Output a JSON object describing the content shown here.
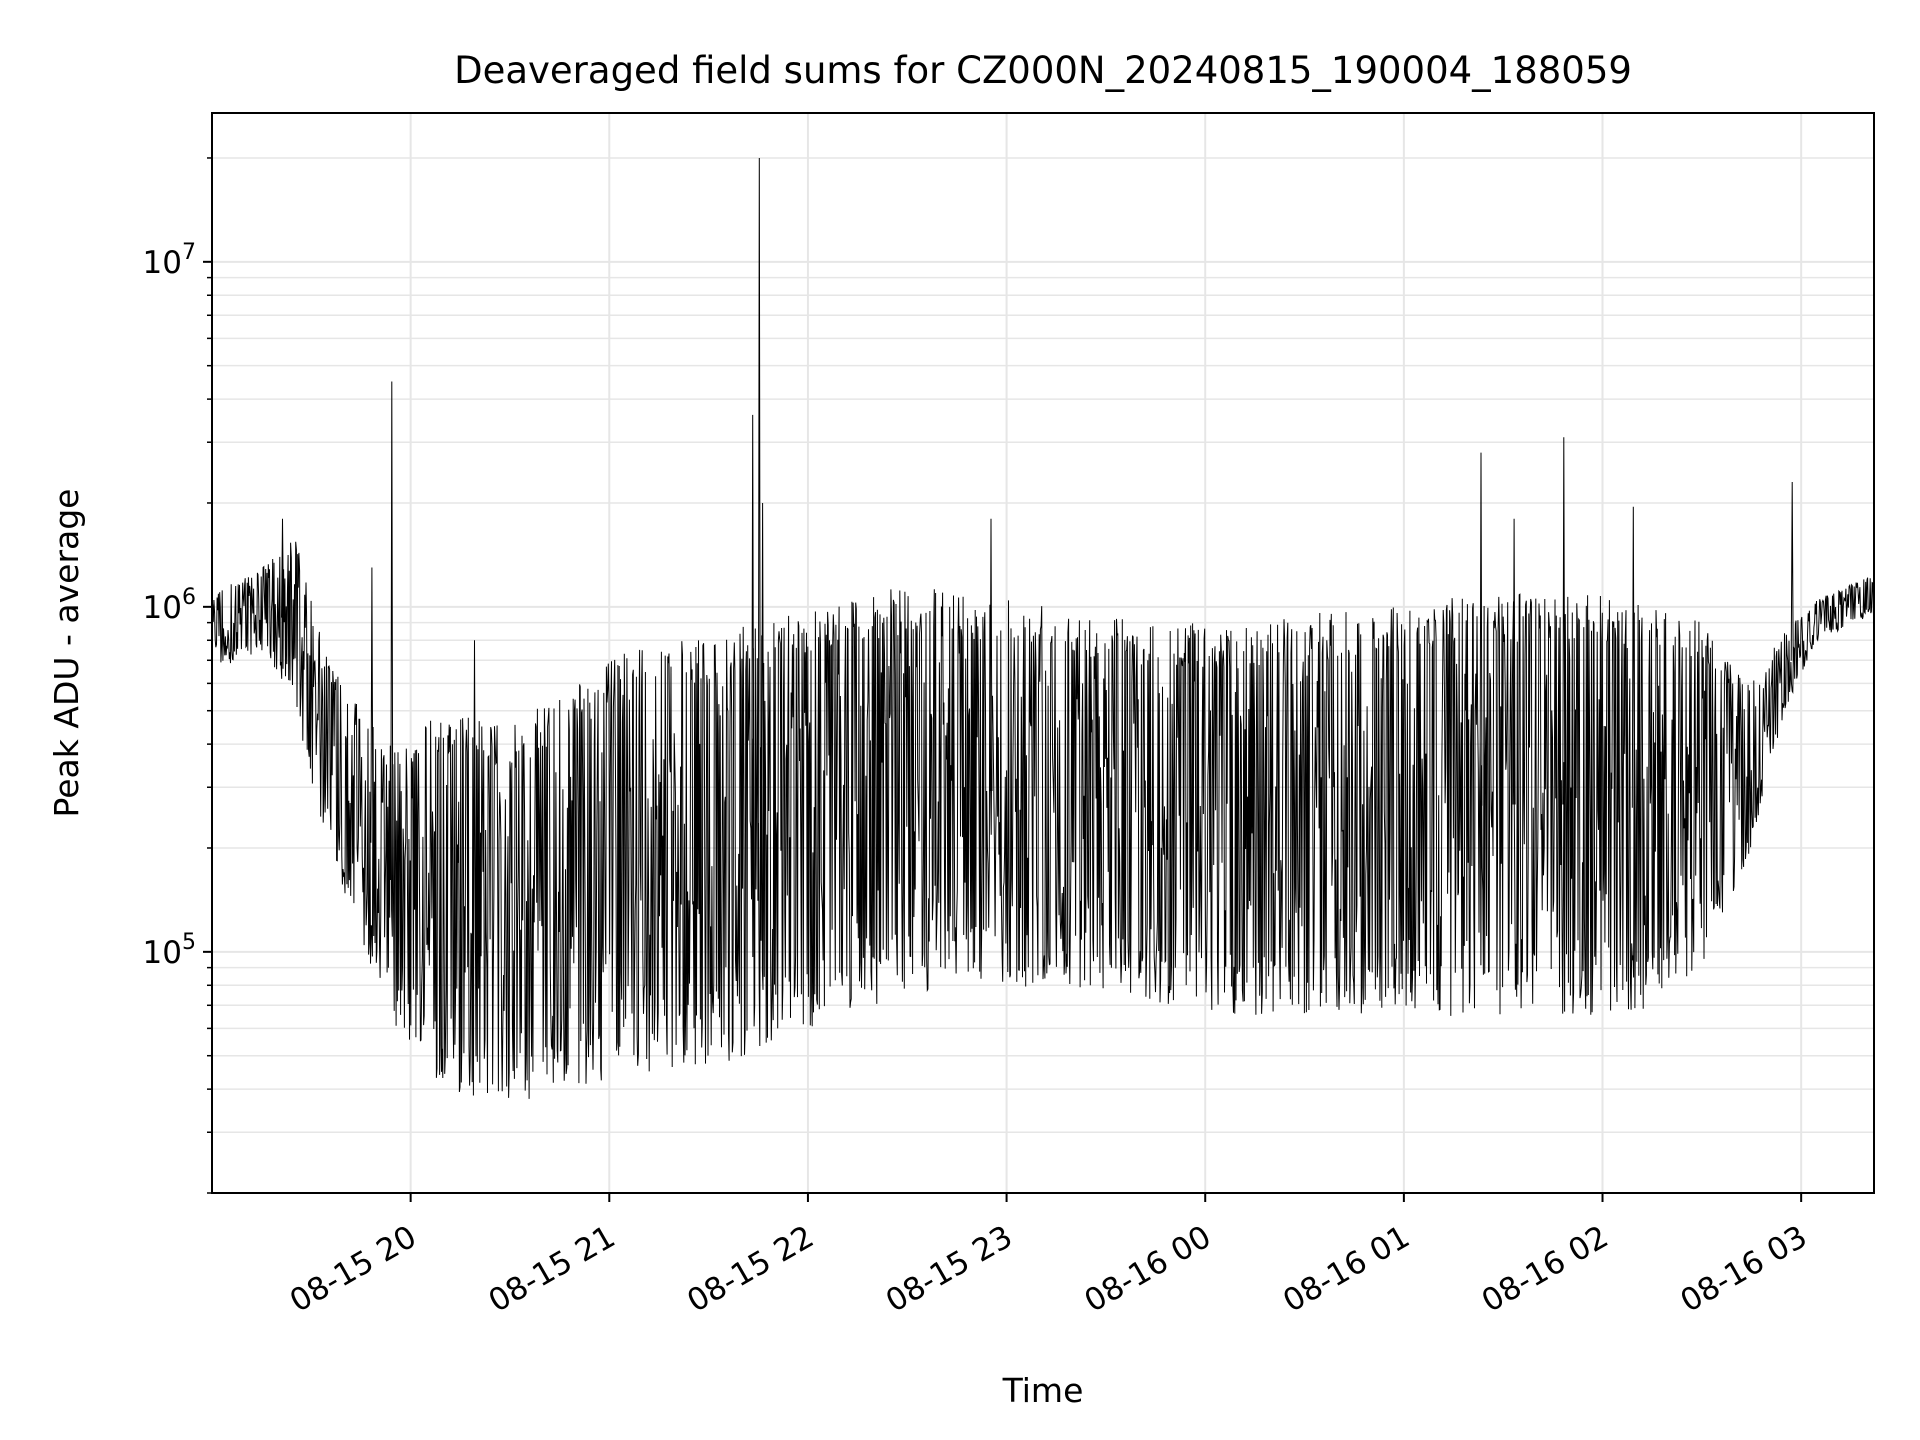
{
  "chart_data": {
    "type": "line",
    "title": "Deaveraged field sums for CZ000N_20240815_190004_188059",
    "xlabel": "Time",
    "ylabel": "Peak ADU - average",
    "yscale": "log",
    "ylim": [
      20000,
      27000000
    ],
    "xlim": [
      "2024-08-15 19:00",
      "2024-08-16 03:22"
    ],
    "grid": "on",
    "line_color": "#000000",
    "x_ticks": [
      {
        "value": "2024-08-15 20:00",
        "label": "08-15 20"
      },
      {
        "value": "2024-08-15 21:00",
        "label": "08-15 21"
      },
      {
        "value": "2024-08-15 22:00",
        "label": "08-15 22"
      },
      {
        "value": "2024-08-15 23:00",
        "label": "08-15 23"
      },
      {
        "value": "2024-08-16 00:00",
        "label": "08-16 00"
      },
      {
        "value": "2024-08-16 01:00",
        "label": "08-16 01"
      },
      {
        "value": "2024-08-16 02:00",
        "label": "08-16 02"
      },
      {
        "value": "2024-08-16 03:00",
        "label": "08-16 03"
      }
    ],
    "y_ticks": [
      {
        "value": 100000,
        "base": "10",
        "exp": "5"
      },
      {
        "value": 1000000,
        "base": "10",
        "exp": "6"
      },
      {
        "value": 10000000,
        "base": "10",
        "exp": "7"
      }
    ],
    "series": [
      {
        "envelope": [
          {
            "x": "2024-08-15 19:00",
            "low": 650000,
            "high": 1100000
          },
          {
            "x": "2024-08-15 19:15",
            "low": 750000,
            "high": 1300000
          },
          {
            "x": "2024-08-15 19:25",
            "low": 500000,
            "high": 1600000
          },
          {
            "x": "2024-08-15 19:35",
            "low": 200000,
            "high": 700000
          },
          {
            "x": "2024-08-15 19:45",
            "low": 110000,
            "high": 500000
          },
          {
            "x": "2024-08-15 19:55",
            "low": 60000,
            "high": 400000
          },
          {
            "x": "2024-08-15 20:10",
            "low": 40000,
            "high": 500000
          },
          {
            "x": "2024-08-15 20:30",
            "low": 35000,
            "high": 450000
          },
          {
            "x": "2024-08-15 20:50",
            "low": 40000,
            "high": 600000
          },
          {
            "x": "2024-08-15 21:10",
            "low": 45000,
            "high": 800000
          },
          {
            "x": "2024-08-15 21:30",
            "low": 45000,
            "high": 800000
          },
          {
            "x": "2024-08-15 21:50",
            "low": 55000,
            "high": 950000
          },
          {
            "x": "2024-08-15 22:10",
            "low": 65000,
            "high": 1050000
          },
          {
            "x": "2024-08-15 22:30",
            "low": 75000,
            "high": 1150000
          },
          {
            "x": "2024-08-15 22:50",
            "low": 80000,
            "high": 1100000
          },
          {
            "x": "2024-08-15 23:10",
            "low": 75000,
            "high": 1050000
          },
          {
            "x": "2024-08-15 23:30",
            "low": 75000,
            "high": 950000
          },
          {
            "x": "2024-08-15 23:50",
            "low": 70000,
            "high": 900000
          },
          {
            "x": "2024-08-16 00:10",
            "low": 65000,
            "high": 900000
          },
          {
            "x": "2024-08-16 00:30",
            "low": 65000,
            "high": 950000
          },
          {
            "x": "2024-08-16 00:50",
            "low": 65000,
            "high": 1000000
          },
          {
            "x": "2024-08-16 01:10",
            "low": 65000,
            "high": 1050000
          },
          {
            "x": "2024-08-16 01:30",
            "low": 65000,
            "high": 1100000
          },
          {
            "x": "2024-08-16 01:50",
            "low": 65000,
            "high": 1100000
          },
          {
            "x": "2024-08-16 02:10",
            "low": 65000,
            "high": 1050000
          },
          {
            "x": "2024-08-16 02:30",
            "low": 90000,
            "high": 900000
          },
          {
            "x": "2024-08-16 02:45",
            "low": 200000,
            "high": 600000
          },
          {
            "x": "2024-08-16 02:55",
            "low": 500000,
            "high": 850000
          },
          {
            "x": "2024-08-16 03:05",
            "low": 800000,
            "high": 1050000
          },
          {
            "x": "2024-08-16 03:22",
            "low": 950000,
            "high": 1250000
          }
        ],
        "spikes": [
          {
            "x": "2024-08-15 19:54",
            "value": 4500000
          },
          {
            "x": "2024-08-15 21:43",
            "value": 3600000
          },
          {
            "x": "2024-08-15 21:45",
            "value": 20000000
          },
          {
            "x": "2024-08-15 21:46",
            "value": 2000000
          },
          {
            "x": "2024-08-15 22:55",
            "value": 1800000
          },
          {
            "x": "2024-08-16 01:23",
            "value": 2800000
          },
          {
            "x": "2024-08-16 01:48",
            "value": 3100000
          },
          {
            "x": "2024-08-16 02:09",
            "value": 1950000
          },
          {
            "x": "2024-08-16 02:57",
            "value": 2300000
          },
          {
            "x": "2024-08-15 19:48",
            "value": 1300000
          },
          {
            "x": "2024-08-16 01:33",
            "value": 1800000
          },
          {
            "x": "2024-08-15 20:19",
            "value": 800000
          },
          {
            "x": "2024-08-15 19:21",
            "value": 1800000
          }
        ]
      }
    ]
  }
}
